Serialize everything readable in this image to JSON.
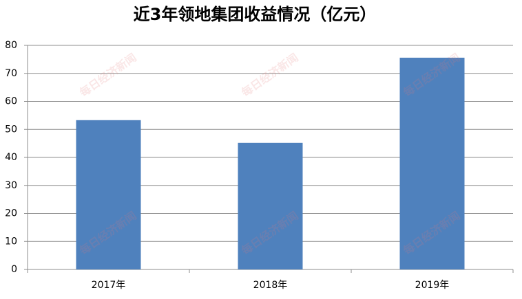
{
  "chart_data": {
    "type": "bar",
    "title": "近3年领地集团收益情况（亿元）",
    "categories": [
      "2017年",
      "2018年",
      "2019年"
    ],
    "values": [
      53.3,
      45.2,
      75.6
    ],
    "color": "#4f81bd",
    "ylim": [
      0,
      80
    ],
    "yticks": [
      0,
      10,
      20,
      30,
      40,
      50,
      60,
      70,
      80
    ],
    "grid": true,
    "watermark": "每日经济新闻"
  }
}
